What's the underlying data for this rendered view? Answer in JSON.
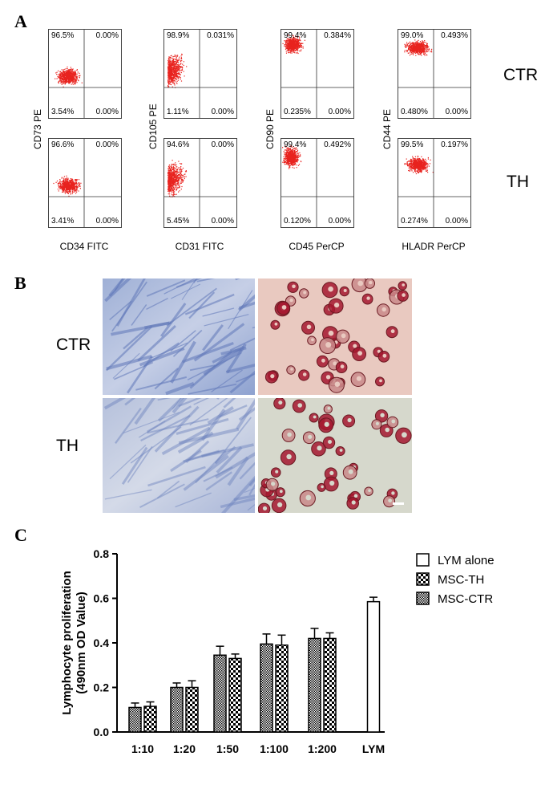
{
  "panel_labels": {
    "a": "A",
    "b": "B",
    "c": "C"
  },
  "flow": {
    "row_labels": [
      "CTR",
      "TH"
    ],
    "columns": [
      {
        "ylabel": "CD73 PE",
        "xlabel": "CD34 FITC",
        "rows": [
          {
            "ul": "96.5%",
            "ur": "0.00%",
            "ll": "3.54%",
            "lr": "0.00%"
          },
          {
            "ul": "96.6%",
            "ur": "0.00%",
            "ll": "3.41%",
            "lr": "0.00%"
          }
        ]
      },
      {
        "ylabel": "CD105 PE",
        "xlabel": "CD31 FITC",
        "rows": [
          {
            "ul": "98.9%",
            "ur": "0.031%",
            "ll": "1.11%",
            "lr": "0.00%"
          },
          {
            "ul": "94.6%",
            "ur": "0.00%",
            "ll": "5.45%",
            "lr": "0.00%"
          }
        ]
      },
      {
        "ylabel": "CD90 PE",
        "xlabel": "CD45 PerCP",
        "rows": [
          {
            "ul": "99.4%",
            "ur": "0.384%",
            "ll": "0.235%",
            "lr": "0.00%"
          },
          {
            "ul": "99.4%",
            "ur": "0.492%",
            "ll": "0.120%",
            "lr": "0.00%"
          }
        ]
      },
      {
        "ylabel": "CD44 PE",
        "xlabel": "HLADR PerCP",
        "rows": [
          {
            "ul": "99.0%",
            "ur": "0.493%",
            "ll": "0.480%",
            "lr": "0.00%"
          },
          {
            "ul": "99.5%",
            "ur": "0.197%",
            "ll": "0.274%",
            "lr": "0.00%"
          }
        ]
      }
    ]
  },
  "micrographs": {
    "row_labels": [
      "CTR",
      "TH"
    ]
  },
  "chart_data": {
    "type": "bar",
    "ylabel": "Lymphocyte proliferation\n(490nm OD Value)",
    "ylim": [
      0.0,
      0.8
    ],
    "yticks": [
      "0.0",
      "0.2",
      "0.4",
      "0.6",
      "0.8"
    ],
    "categories": [
      "1:10",
      "1:20",
      "1:50",
      "1:100",
      "1:200",
      "LYM"
    ],
    "series": [
      {
        "name": "LYM alone",
        "values": [
          null,
          null,
          null,
          null,
          null,
          0.585
        ],
        "errors": [
          null,
          null,
          null,
          null,
          null,
          0.02
        ]
      },
      {
        "name": "MSC-TH",
        "values": [
          0.115,
          0.2,
          0.33,
          0.39,
          0.42,
          null
        ],
        "errors": [
          0.02,
          0.03,
          0.02,
          0.045,
          0.025,
          null
        ]
      },
      {
        "name": "MSC-CTR",
        "values": [
          0.11,
          0.2,
          0.345,
          0.395,
          0.42,
          null
        ],
        "errors": [
          0.02,
          0.02,
          0.04,
          0.045,
          0.045,
          null
        ]
      }
    ],
    "legend": {
      "position": "top-right"
    },
    "grid": false
  }
}
